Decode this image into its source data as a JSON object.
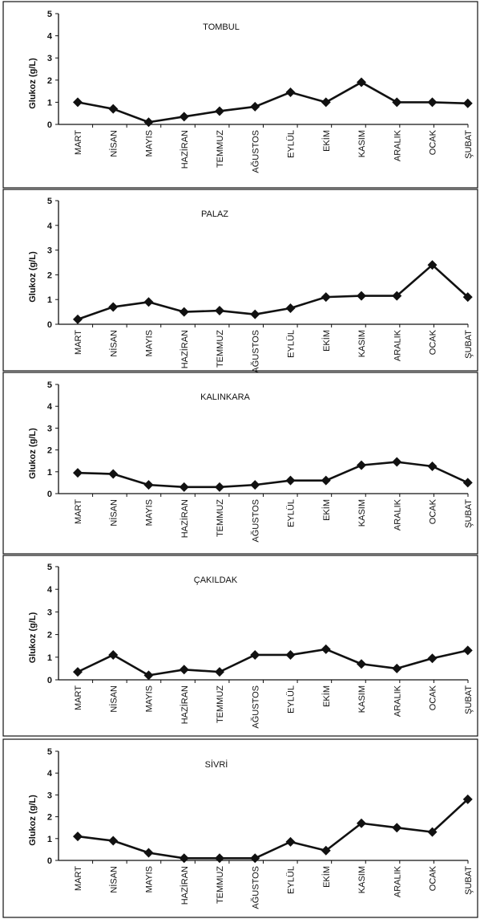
{
  "chart_data": [
    {
      "type": "line",
      "title": "TOMBUL",
      "ylabel": "Glukoz (g/L)",
      "ylim": [
        0,
        5
      ],
      "yticks": [
        "0",
        "1",
        "2",
        "3",
        "4",
        "5"
      ],
      "categories": [
        "MART",
        "NİSAN",
        "MAYIS",
        "HAZİRAN",
        "TEMMUZ",
        "AĞUSTOS",
        "EYLÜL",
        "EKİM",
        "KASIM",
        "ARALIK",
        "OCAK",
        "ŞUBAT"
      ],
      "values": [
        1.0,
        0.7,
        0.1,
        0.35,
        0.6,
        0.8,
        1.45,
        1.0,
        1.9,
        1.0,
        1.0,
        0.95
      ]
    },
    {
      "type": "line",
      "title": "PALAZ",
      "ylabel": "Glukoz (g/L)",
      "ylim": [
        0,
        5
      ],
      "yticks": [
        "0",
        "1",
        "2",
        "3",
        "4",
        "5"
      ],
      "categories": [
        "MART",
        "NİSAN",
        "MAYIS",
        "HAZİRAN",
        "TEMMUZ",
        "AĞUSTOS",
        "EYLÜL",
        "EKİM",
        "KASIM",
        "ARALIK",
        "OCAK",
        "ŞUBAT"
      ],
      "values": [
        0.2,
        0.7,
        0.9,
        0.5,
        0.55,
        0.4,
        0.65,
        1.1,
        1.15,
        1.15,
        2.4,
        1.1
      ]
    },
    {
      "type": "line",
      "title": "KALINKARA",
      "ylabel": "Glukoz (g/L)",
      "ylim": [
        0,
        5
      ],
      "yticks": [
        "0",
        "1",
        "2",
        "3",
        "4",
        "5"
      ],
      "categories": [
        "MART",
        "NİSAN",
        "MAYIS",
        "HAZİRAN",
        "TEMMUZ",
        "AĞUSTOS",
        "EYLÜL",
        "EKİM",
        "KASIM",
        "ARALIK",
        "OCAK",
        "ŞUBAT"
      ],
      "values": [
        0.95,
        0.9,
        0.4,
        0.3,
        0.3,
        0.4,
        0.6,
        0.6,
        1.3,
        1.45,
        1.25,
        0.5
      ]
    },
    {
      "type": "line",
      "title": "ÇAKILDAK",
      "ylabel": "Glukoz (g/L)",
      "ylim": [
        0,
        5
      ],
      "yticks": [
        "0",
        "1",
        "2",
        "3",
        "4",
        "5"
      ],
      "categories": [
        "MART",
        "NİSAN",
        "MAYIS",
        "HAZİRAN",
        "TEMMUZ",
        "AĞUSTOS",
        "EYLÜL",
        "EKİM",
        "KASIM",
        "ARALIK",
        "OCAK",
        "ŞUBAT"
      ],
      "values": [
        0.35,
        1.1,
        0.2,
        0.45,
        0.35,
        1.1,
        1.1,
        1.35,
        0.7,
        0.5,
        0.95,
        1.3
      ]
    },
    {
      "type": "line",
      "title": "SİVRİ",
      "ylabel": "Glukoz (g/L)",
      "ylim": [
        0,
        5
      ],
      "yticks": [
        "0",
        "1",
        "2",
        "3",
        "4",
        "5"
      ],
      "categories": [
        "MART",
        "NİSAN",
        "MAYIS",
        "HAZİRAN",
        "TEMMUZ",
        "AĞUSTOS",
        "EYLÜL",
        "EKİM",
        "KASIM",
        "ARALIK",
        "OCAK",
        "ŞUBAT"
      ],
      "values": [
        1.1,
        0.9,
        0.35,
        0.1,
        0.1,
        0.1,
        0.85,
        0.45,
        1.7,
        1.5,
        1.3,
        2.8
      ]
    }
  ]
}
